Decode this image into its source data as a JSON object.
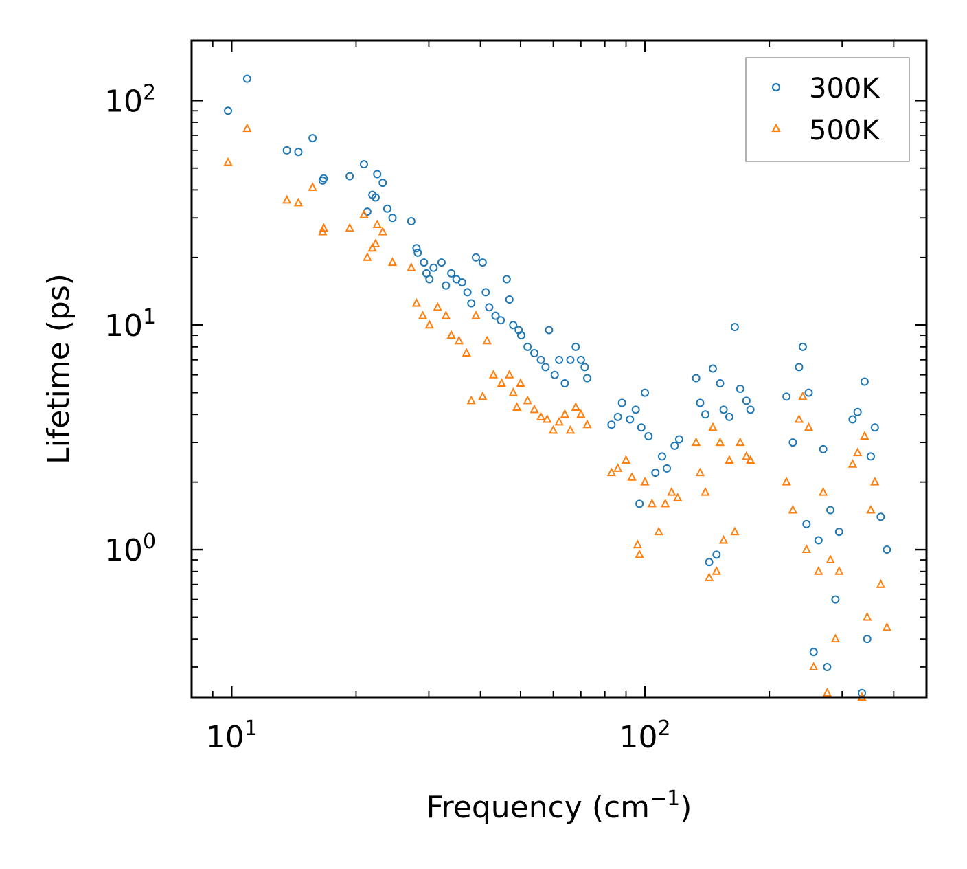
{
  "chart_data": {
    "type": "scatter",
    "x_scale": "log",
    "y_scale": "log",
    "xlabel": "Frequency (cm",
    "xlabel_sup": "−1",
    "xlabel_end": ")",
    "ylabel": "Lifetime (ps)",
    "xlim": [
      8,
      480
    ],
    "ylim": [
      0.22,
      185
    ],
    "x_ticks": [
      {
        "base": "10",
        "exp": "1",
        "value": 10
      },
      {
        "base": "10",
        "exp": "2",
        "value": 100
      }
    ],
    "y_ticks": [
      {
        "base": "10",
        "exp": "0",
        "value": 1
      },
      {
        "base": "10",
        "exp": "1",
        "value": 10
      },
      {
        "base": "10",
        "exp": "2",
        "value": 100
      }
    ],
    "legend": {
      "placement": "top-right",
      "entries": [
        "300K",
        "500K"
      ]
    },
    "series": [
      {
        "name": "300K",
        "marker": "circle",
        "color": "#1f77b4",
        "points": [
          [
            9.8,
            90
          ],
          [
            10.9,
            125
          ],
          [
            13.6,
            60
          ],
          [
            14.5,
            59
          ],
          [
            15.7,
            68
          ],
          [
            16.6,
            44
          ],
          [
            16.7,
            45
          ],
          [
            19.3,
            46
          ],
          [
            20.9,
            52
          ],
          [
            21.3,
            32
          ],
          [
            21.9,
            38
          ],
          [
            22.3,
            37
          ],
          [
            22.5,
            47
          ],
          [
            23.2,
            43
          ],
          [
            23.8,
            33
          ],
          [
            24.5,
            30
          ],
          [
            27.2,
            29
          ],
          [
            28.0,
            22
          ],
          [
            28.2,
            21
          ],
          [
            29.2,
            19
          ],
          [
            29.6,
            17
          ],
          [
            30.1,
            16
          ],
          [
            30.8,
            18
          ],
          [
            32.2,
            19
          ],
          [
            33.0,
            15
          ],
          [
            34.0,
            17
          ],
          [
            35.0,
            16
          ],
          [
            36.1,
            15.5
          ],
          [
            37.2,
            14
          ],
          [
            38.0,
            12.5
          ],
          [
            39.0,
            20
          ],
          [
            40.5,
            19
          ],
          [
            41.2,
            14
          ],
          [
            42.0,
            12
          ],
          [
            43.5,
            11
          ],
          [
            44.8,
            10.5
          ],
          [
            46.3,
            16
          ],
          [
            47.0,
            13
          ],
          [
            48.0,
            10
          ],
          [
            49.5,
            9.5
          ],
          [
            50.2,
            9
          ],
          [
            52.0,
            8
          ],
          [
            54.0,
            7.5
          ],
          [
            56.0,
            7
          ],
          [
            57.5,
            6.5
          ],
          [
            58.6,
            9.5
          ],
          [
            60.5,
            6
          ],
          [
            62.0,
            7
          ],
          [
            64.0,
            5.5
          ],
          [
            66.0,
            7
          ],
          [
            68.0,
            8
          ],
          [
            70.0,
            7
          ],
          [
            71.5,
            6.5
          ],
          [
            72.5,
            5.8
          ],
          [
            83.0,
            3.6
          ],
          [
            86.0,
            3.9
          ],
          [
            88.0,
            4.5
          ],
          [
            92.0,
            3.8
          ],
          [
            95.0,
            4.2
          ],
          [
            97.0,
            1.6
          ],
          [
            98.0,
            3.5
          ],
          [
            100.0,
            5.0
          ],
          [
            102.0,
            3.2
          ],
          [
            106.0,
            2.2
          ],
          [
            110.0,
            2.6
          ],
          [
            113.0,
            2.3
          ],
          [
            118.0,
            2.9
          ],
          [
            121.0,
            3.1
          ],
          [
            133.0,
            5.8
          ],
          [
            136.0,
            4.5
          ],
          [
            140.0,
            4.0
          ],
          [
            143.0,
            0.88
          ],
          [
            146.0,
            6.4
          ],
          [
            149.0,
            0.95
          ],
          [
            152.0,
            5.5
          ],
          [
            155.0,
            4.2
          ],
          [
            160.0,
            3.9
          ],
          [
            165.0,
            9.8
          ],
          [
            170.0,
            5.2
          ],
          [
            176.0,
            4.6
          ],
          [
            180.0,
            4.2
          ],
          [
            220.0,
            4.8
          ],
          [
            228.0,
            3.0
          ],
          [
            236.0,
            6.5
          ],
          [
            241.0,
            8.0
          ],
          [
            246.0,
            1.3
          ],
          [
            249.0,
            5.0
          ],
          [
            256.0,
            0.35
          ],
          [
            263.0,
            1.1
          ],
          [
            270.0,
            2.8
          ],
          [
            276.0,
            0.3
          ],
          [
            281.0,
            1.5
          ],
          [
            289.0,
            0.6
          ],
          [
            295.0,
            1.2
          ],
          [
            318.0,
            3.8
          ],
          [
            327.0,
            4.1
          ],
          [
            335.0,
            0.23
          ],
          [
            340.0,
            5.6
          ],
          [
            345.0,
            0.4
          ],
          [
            352.0,
            2.6
          ],
          [
            360.0,
            3.5
          ],
          [
            372.0,
            1.4
          ],
          [
            385.0,
            1.0
          ]
        ]
      },
      {
        "name": "500K",
        "marker": "triangle",
        "color": "#ff7f0e",
        "points": [
          [
            9.8,
            53
          ],
          [
            10.9,
            75
          ],
          [
            13.6,
            36
          ],
          [
            14.5,
            35
          ],
          [
            15.7,
            41
          ],
          [
            16.6,
            26
          ],
          [
            16.7,
            27
          ],
          [
            19.3,
            27
          ],
          [
            20.9,
            31
          ],
          [
            21.3,
            20
          ],
          [
            21.9,
            22
          ],
          [
            22.3,
            23
          ],
          [
            22.5,
            28
          ],
          [
            23.2,
            26
          ],
          [
            24.5,
            19
          ],
          [
            27.2,
            18
          ],
          [
            28.0,
            12.5
          ],
          [
            29.0,
            11
          ],
          [
            30.1,
            10
          ],
          [
            31.5,
            12
          ],
          [
            33.0,
            11
          ],
          [
            34.0,
            9
          ],
          [
            35.5,
            8.5
          ],
          [
            37.0,
            7.5
          ],
          [
            38.0,
            4.6
          ],
          [
            39.0,
            11
          ],
          [
            40.5,
            4.8
          ],
          [
            41.5,
            8.5
          ],
          [
            43.0,
            6
          ],
          [
            45.0,
            5.5
          ],
          [
            47.0,
            6
          ],
          [
            48.0,
            5
          ],
          [
            49.0,
            4.3
          ],
          [
            50.0,
            5.5
          ],
          [
            52.0,
            4.6
          ],
          [
            54.0,
            4.2
          ],
          [
            56.0,
            3.9
          ],
          [
            58.0,
            3.8
          ],
          [
            60.0,
            3.4
          ],
          [
            62.0,
            3.7
          ],
          [
            64.0,
            4.0
          ],
          [
            66.0,
            3.4
          ],
          [
            68.0,
            4.3
          ],
          [
            70.0,
            4.0
          ],
          [
            72.5,
            3.6
          ],
          [
            83.0,
            2.2
          ],
          [
            86.0,
            2.3
          ],
          [
            90.0,
            2.5
          ],
          [
            93.0,
            2.1
          ],
          [
            96.0,
            1.05
          ],
          [
            97.0,
            0.95
          ],
          [
            100.0,
            2.0
          ],
          [
            104.0,
            1.6
          ],
          [
            108.0,
            1.2
          ],
          [
            112.0,
            1.6
          ],
          [
            116.0,
            1.8
          ],
          [
            120.0,
            1.7
          ],
          [
            133.0,
            3.0
          ],
          [
            136.0,
            2.2
          ],
          [
            140.0,
            1.8
          ],
          [
            143.0,
            0.75
          ],
          [
            146.0,
            3.5
          ],
          [
            149.0,
            0.8
          ],
          [
            152.0,
            3.0
          ],
          [
            155.0,
            1.1
          ],
          [
            160.0,
            2.5
          ],
          [
            165.0,
            1.2
          ],
          [
            170.0,
            3.0
          ],
          [
            176.0,
            2.6
          ],
          [
            180.0,
            2.5
          ],
          [
            220.0,
            2.0
          ],
          [
            228.0,
            1.5
          ],
          [
            236.0,
            3.8
          ],
          [
            241.0,
            4.8
          ],
          [
            246.0,
            1.0
          ],
          [
            249.0,
            3.5
          ],
          [
            256.0,
            0.3
          ],
          [
            263.0,
            0.8
          ],
          [
            270.0,
            1.8
          ],
          [
            276.0,
            0.23
          ],
          [
            281.0,
            0.9
          ],
          [
            289.0,
            0.4
          ],
          [
            295.0,
            0.8
          ],
          [
            318.0,
            2.4
          ],
          [
            327.0,
            2.7
          ],
          [
            335.0,
            0.22
          ],
          [
            340.0,
            3.2
          ],
          [
            345.0,
            0.5
          ],
          [
            352.0,
            1.5
          ],
          [
            360.0,
            2.0
          ],
          [
            372.0,
            0.7
          ],
          [
            385.0,
            0.45
          ]
        ]
      }
    ]
  }
}
